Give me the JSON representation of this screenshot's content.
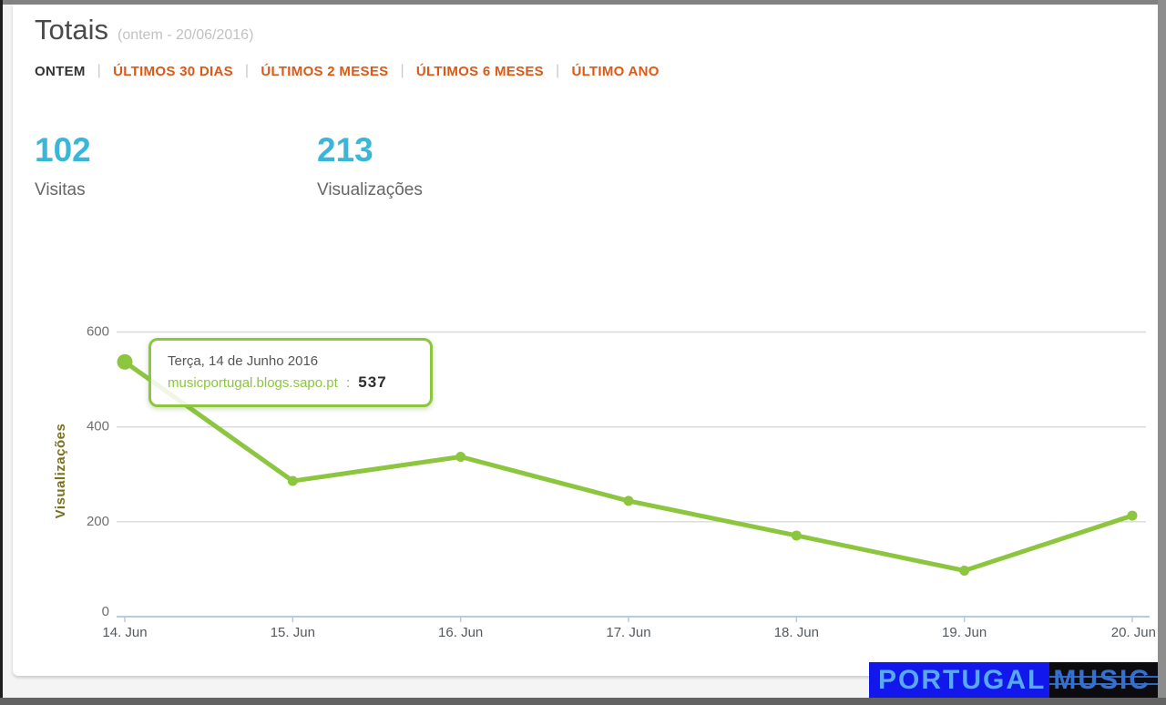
{
  "colors": {
    "accent_cyan": "#3ab6d9",
    "accent_orange": "#dd5815",
    "chart_green": "#8cc63f",
    "axis_blue": "#b7cbdf",
    "grid_gray": "#d9d9d9",
    "tick_label_gray": "#6e6e6e",
    "x_label_gray": "#54595e",
    "ylabel_olive": "#7c701d",
    "watermark_blue_bg": "#1218ec",
    "watermark_text_blue": "#57a9f2"
  },
  "header": {
    "title": "Totais",
    "subtitle": "(ontem - 20/06/2016)"
  },
  "tabs": [
    {
      "id": "ontem",
      "label": "ONTEM",
      "active": true
    },
    {
      "id": "ultimos-30-dias",
      "label": "ÚLTIMOS 30 DIAS",
      "active": false
    },
    {
      "id": "ultimos-2-meses",
      "label": "ÚLTIMOS 2 MESES",
      "active": false
    },
    {
      "id": "ultimos-6-meses",
      "label": "ÚLTIMOS 6 MESES",
      "active": false
    },
    {
      "id": "ultimo-ano",
      "label": "ÚLTIMO ANO",
      "active": false
    }
  ],
  "stats": [
    {
      "value": "102",
      "label": "Visitas"
    },
    {
      "value": "213",
      "label": "Visualizações"
    }
  ],
  "tooltip": {
    "date": "Terça, 14 de Junho 2016",
    "domain": "musicportugal.blogs.sapo.pt",
    "separator": ":",
    "value": "537"
  },
  "watermark": {
    "left": "PORTUGAL",
    "right": "MUSIC"
  },
  "chart_data": {
    "type": "line",
    "x": [
      "14. Jun",
      "15. Jun",
      "16. Jun",
      "17. Jun",
      "18. Jun",
      "19. Jun",
      "20. Jun"
    ],
    "series": [
      {
        "name": "musicportugal.blogs.sapo.pt",
        "values": [
          537,
          286,
          337,
          244,
          171,
          97,
          213
        ]
      }
    ],
    "title": "",
    "xlabel": "",
    "ylabel": "Visualizações",
    "yticks": [
      0,
      200,
      400,
      600
    ],
    "ylim": [
      0,
      620
    ],
    "grid": true,
    "legend": false,
    "highlight_index": 0
  }
}
